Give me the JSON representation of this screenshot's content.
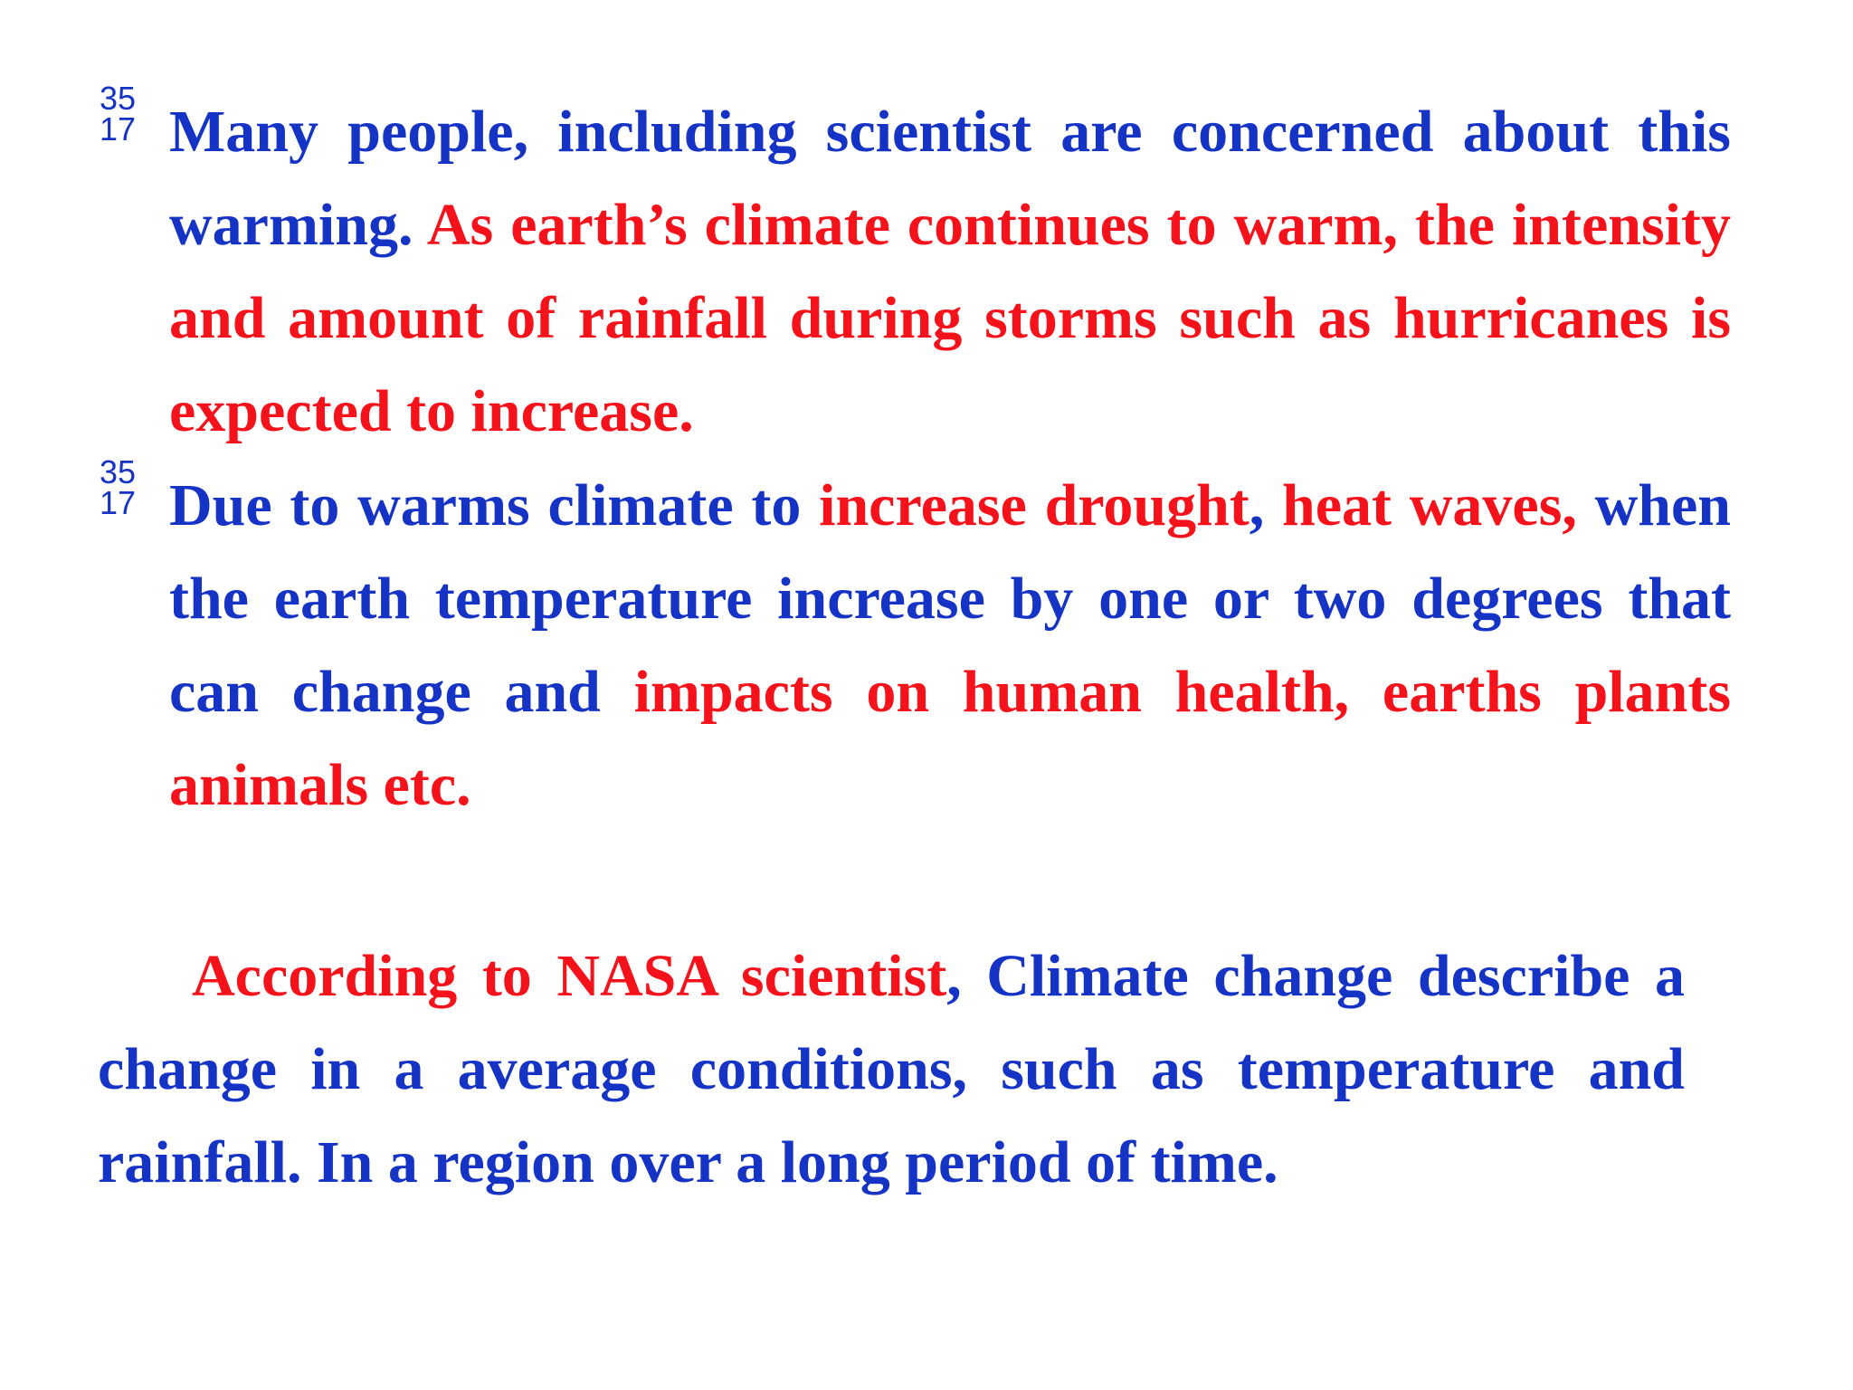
{
  "bullets": [
    {
      "marker": [
        "35",
        "17"
      ],
      "segments": [
        {
          "text": "Many people, including scientist are concerned about this warming. ",
          "color": "#1533c4"
        },
        {
          "text": "As earth’s climate continues to warm, the intensity and amount of rainfall during storms such as hurricanes is expected to increase.",
          "color": "#f5121b"
        }
      ]
    },
    {
      "marker": [
        "35",
        "17"
      ],
      "segments": [
        {
          "text": "Due to warms climate to ",
          "color": "#1533c4"
        },
        {
          "text": "increase drought",
          "color": "#f5121b"
        },
        {
          "text": ", ",
          "color": "#1533c4"
        },
        {
          "text": "heat waves,",
          "color": "#f5121b"
        },
        {
          "text": " when the earth temperature increase by one or two degrees that can change and ",
          "color": "#1533c4"
        },
        {
          "text": "impacts on human health, earths plants animals etc.",
          "color": "#f5121b"
        }
      ]
    }
  ],
  "paragraph": {
    "segments": [
      {
        "text": "According to NASA scientist",
        "color": "#f5121b"
      },
      {
        "text": ", Climate change describe a change in a average conditions, such as temperature and rainfall. In a region over a long period of time.",
        "color": "#1533c4"
      }
    ]
  }
}
